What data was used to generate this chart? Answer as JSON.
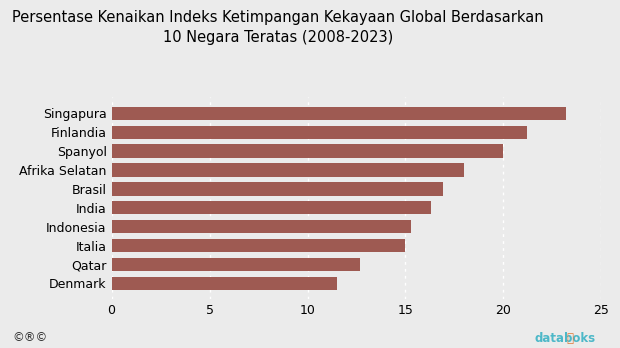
{
  "title_line1": "Persentase Kenaikan Indeks Ketimpangan Kekayaan Global Berdasarkan",
  "title_line2": "10 Negara Teratas (2008-2023)",
  "categories": [
    "Denmark",
    "Qatar",
    "Italia",
    "Indonesia",
    "India",
    "Brasil",
    "Afrika Selatan",
    "Spanyol",
    "Finlandia",
    "Singapura"
  ],
  "values": [
    11.5,
    12.7,
    15.0,
    15.3,
    16.3,
    16.9,
    18.0,
    20.0,
    21.2,
    23.2
  ],
  "bar_color": "#9e5a52",
  "background_color": "#ebebeb",
  "xlim": [
    0,
    25
  ],
  "xticks": [
    0,
    5,
    10,
    15,
    20,
    25
  ],
  "title_fontsize": 10.5,
  "tick_fontsize": 9,
  "grid_color": "#ffffff",
  "bar_height": 0.7,
  "footer_cc": "©ⓘ⊜",
  "footer_brand": " databoks",
  "footer_icon_color": "#e07b3a",
  "footer_brand_color": "#4db8c8"
}
